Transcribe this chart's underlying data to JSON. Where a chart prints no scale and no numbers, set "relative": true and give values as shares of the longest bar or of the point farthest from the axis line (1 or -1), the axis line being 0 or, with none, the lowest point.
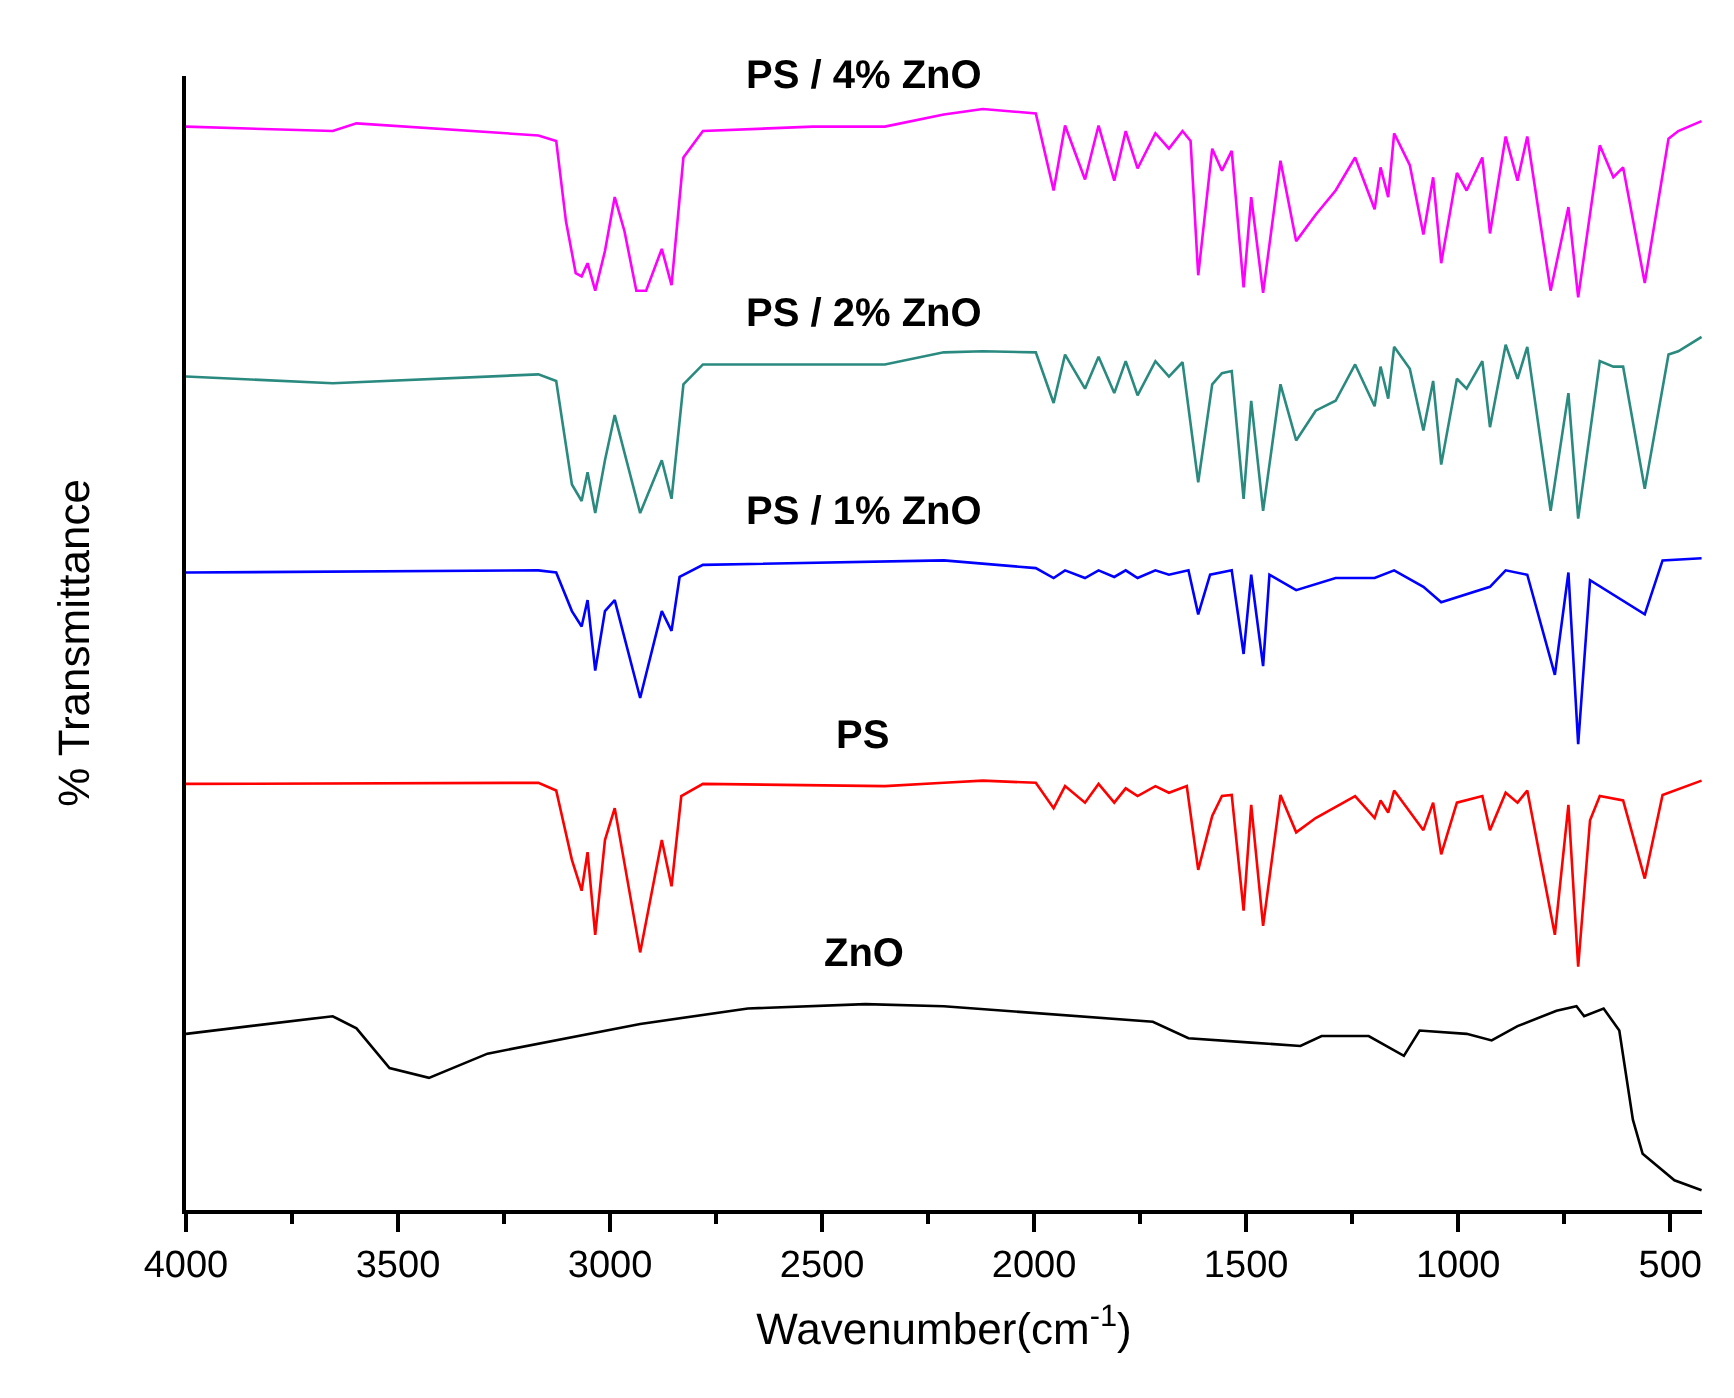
{
  "chart_data": {
    "type": "line",
    "relative": true,
    "xlabel": "Wavenumber(cm$^{-1}$)",
    "ylabel": "% Transmittance",
    "xlim": [
      4000,
      425
    ],
    "xticks": [
      4000,
      {
        "value": 3750,
        "label": null
      },
      3500,
      {
        "value": 3250,
        "label": null
      },
      3000,
      {
        "value": 2750,
        "label": null
      },
      2500,
      {
        "value": 2250,
        "label": null
      },
      2000,
      {
        "value": 1750,
        "label": null
      },
      1500,
      {
        "value": 1250,
        "label": null
      },
      1000,
      {
        "value": 750,
        "label": null
      },
      500
    ],
    "grid": false,
    "legend": false,
    "marker": "none",
    "line_style": "solid",
    "series": [
      {
        "name": "PS / 4% ZnO",
        "color": "#ff00ff",
        "x": [
          4000,
          3654,
          3598,
          3169,
          3127,
          3104,
          3081,
          3067,
          3053,
          3035,
          3012,
          2989,
          2966,
          2938,
          2915,
          2878,
          2855,
          2827,
          2781,
          2522,
          2352,
          2213,
          2121,
          1996,
          1954,
          1927,
          1880,
          1848,
          1811,
          1784,
          1756,
          1714,
          1682,
          1650,
          1631,
          1613,
          1580,
          1557,
          1534,
          1506,
          1488,
          1460,
          1419,
          1382,
          1336,
          1289,
          1243,
          1197,
          1183,
          1165,
          1151,
          1114,
          1082,
          1059,
          1040,
          1003,
          980,
          943,
          925,
          888,
          860,
          837,
          782,
          740,
          717,
          666,
          634,
          611,
          560,
          504,
          481,
          426
        ],
        "values": [
          0.984,
          0.98,
          0.987,
          0.976,
          0.971,
          0.898,
          0.851,
          0.848,
          0.86,
          0.835,
          0.871,
          0.92,
          0.889,
          0.835,
          0.835,
          0.873,
          0.84,
          0.956,
          0.98,
          0.984,
          0.984,
          0.995,
          1.0,
          0.996,
          0.926,
          0.985,
          0.936,
          0.985,
          0.935,
          0.98,
          0.946,
          0.978,
          0.964,
          0.98,
          0.971,
          0.849,
          0.964,
          0.944,
          0.962,
          0.838,
          0.92,
          0.833,
          0.953,
          0.88,
          0.904,
          0.926,
          0.956,
          0.909,
          0.947,
          0.92,
          0.978,
          0.949,
          0.886,
          0.938,
          0.86,
          0.942,
          0.926,
          0.956,
          0.887,
          0.975,
          0.935,
          0.975,
          0.835,
          0.911,
          0.829,
          0.967,
          0.938,
          0.947,
          0.842,
          0.973,
          0.98,
          0.989
        ]
      },
      {
        "name": "PS / 2% ZnO",
        "color": "#2a8a7f",
        "x": [
          4000,
          3654,
          3169,
          3127,
          3090,
          3067,
          3053,
          3035,
          3012,
          2989,
          2929,
          2878,
          2855,
          2827,
          2781,
          2352,
          2213,
          2121,
          1996,
          1954,
          1927,
          1880,
          1848,
          1811,
          1784,
          1756,
          1714,
          1682,
          1650,
          1613,
          1580,
          1557,
          1534,
          1506,
          1488,
          1460,
          1419,
          1382,
          1336,
          1289,
          1243,
          1197,
          1183,
          1165,
          1151,
          1114,
          1082,
          1059,
          1040,
          1003,
          980,
          943,
          925,
          888,
          860,
          837,
          782,
          740,
          717,
          666,
          634,
          611,
          560,
          504,
          481,
          426
        ],
        "values": [
          0.757,
          0.751,
          0.759,
          0.753,
          0.659,
          0.644,
          0.67,
          0.633,
          0.681,
          0.722,
          0.633,
          0.681,
          0.646,
          0.75,
          0.768,
          0.768,
          0.779,
          0.78,
          0.779,
          0.733,
          0.777,
          0.746,
          0.775,
          0.742,
          0.771,
          0.74,
          0.771,
          0.757,
          0.77,
          0.661,
          0.75,
          0.76,
          0.762,
          0.646,
          0.735,
          0.635,
          0.75,
          0.699,
          0.726,
          0.735,
          0.768,
          0.73,
          0.766,
          0.737,
          0.784,
          0.764,
          0.708,
          0.753,
          0.677,
          0.755,
          0.746,
          0.771,
          0.711,
          0.786,
          0.755,
          0.784,
          0.635,
          0.742,
          0.628,
          0.771,
          0.766,
          0.766,
          0.655,
          0.777,
          0.78,
          0.793
        ]
      },
      {
        "name": "PS / 1% ZnO",
        "color": "#0000ff",
        "x": [
          4000,
          3169,
          3127,
          3090,
          3067,
          3053,
          3035,
          3012,
          2989,
          2929,
          2878,
          2855,
          2836,
          2781,
          2213,
          1996,
          1954,
          1927,
          1880,
          1848,
          1811,
          1784,
          1756,
          1714,
          1682,
          1636,
          1613,
          1585,
          1534,
          1506,
          1488,
          1460,
          1445,
          1382,
          1289,
          1197,
          1151,
          1082,
          1040,
          925,
          888,
          837,
          772,
          740,
          717,
          689,
          560,
          518,
          426
        ],
        "values": [
          0.579,
          0.581,
          0.579,
          0.544,
          0.53,
          0.554,
          0.49,
          0.544,
          0.554,
          0.465,
          0.544,
          0.526,
          0.575,
          0.586,
          0.59,
          0.583,
          0.574,
          0.581,
          0.574,
          0.581,
          0.575,
          0.581,
          0.574,
          0.581,
          0.577,
          0.581,
          0.541,
          0.577,
          0.581,
          0.505,
          0.577,
          0.494,
          0.577,
          0.563,
          0.574,
          0.574,
          0.581,
          0.566,
          0.552,
          0.566,
          0.581,
          0.577,
          0.486,
          0.579,
          0.423,
          0.572,
          0.541,
          0.59,
          0.592
        ]
      },
      {
        "name": "PS",
        "color": "#ff0000",
        "x": [
          4000,
          3169,
          3127,
          3090,
          3067,
          3053,
          3035,
          3012,
          2989,
          2929,
          2878,
          2855,
          2832,
          2781,
          2352,
          2213,
          2121,
          1996,
          1954,
          1927,
          1880,
          1848,
          1811,
          1784,
          1756,
          1714,
          1682,
          1640,
          1613,
          1580,
          1557,
          1534,
          1506,
          1488,
          1460,
          1419,
          1382,
          1336,
          1243,
          1197,
          1183,
          1165,
          1151,
          1082,
          1059,
          1040,
          1003,
          943,
          925,
          888,
          860,
          837,
          772,
          740,
          717,
          689,
          666,
          611,
          560,
          518,
          426
        ],
        "values": [
          0.387,
          0.388,
          0.381,
          0.318,
          0.29,
          0.325,
          0.25,
          0.336,
          0.365,
          0.234,
          0.336,
          0.294,
          0.376,
          0.387,
          0.385,
          0.388,
          0.39,
          0.388,
          0.365,
          0.385,
          0.37,
          0.387,
          0.37,
          0.383,
          0.376,
          0.385,
          0.379,
          0.385,
          0.309,
          0.358,
          0.376,
          0.377,
          0.272,
          0.368,
          0.258,
          0.377,
          0.343,
          0.356,
          0.376,
          0.356,
          0.372,
          0.361,
          0.381,
          0.345,
          0.37,
          0.323,
          0.37,
          0.376,
          0.345,
          0.379,
          0.37,
          0.381,
          0.25,
          0.368,
          0.221,
          0.354,
          0.376,
          0.372,
          0.301,
          0.377,
          0.39
        ]
      },
      {
        "name": "ZnO",
        "color": "#000000",
        "x": [
          4000,
          3654,
          3598,
          3520,
          3427,
          3289,
          2929,
          2675,
          2398,
          2213,
          1720,
          1636,
          1488,
          1372,
          1322,
          1211,
          1128,
          1091,
          980,
          921,
          860,
          768,
          721,
          703,
          657,
          620,
          588,
          565,
          490,
          426
        ],
        "values": [
          0.16,
          0.176,
          0.165,
          0.129,
          0.12,
          0.142,
          0.169,
          0.183,
          0.187,
          0.185,
          0.171,
          0.156,
          0.152,
          0.149,
          0.158,
          0.158,
          0.14,
          0.163,
          0.16,
          0.154,
          0.167,
          0.181,
          0.185,
          0.176,
          0.183,
          0.163,
          0.082,
          0.051,
          0.027,
          0.018
        ]
      }
    ]
  }
}
